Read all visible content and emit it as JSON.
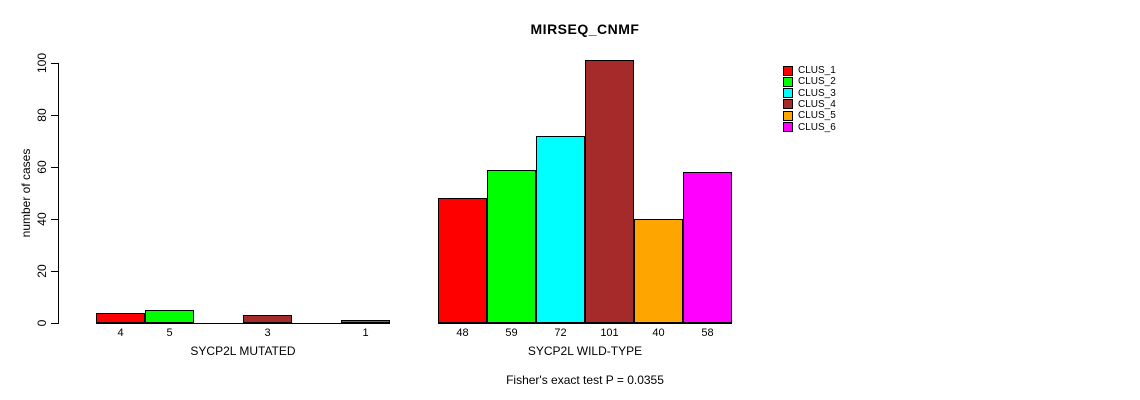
{
  "title": "MIRSEQ_CNMF",
  "footer_annotation": "Fisher's exact test P = 0.0355",
  "y_axis": {
    "label": "number of cases",
    "ticks": [
      0,
      20,
      40,
      60,
      80,
      100
    ]
  },
  "legend": {
    "position": "right",
    "entries": [
      {
        "label": "CLUS_1",
        "color": "#FF0000"
      },
      {
        "label": "CLUS_2",
        "color": "#00FF00"
      },
      {
        "label": "CLUS_3",
        "color": "#00FFFF"
      },
      {
        "label": "CLUS_4",
        "color": "#A52A2A"
      },
      {
        "label": "CLUS_5",
        "color": "#FFA500"
      },
      {
        "label": "CLUS_6",
        "color": "#FF00FF"
      }
    ]
  },
  "chart_data": {
    "type": "bar",
    "title": "MIRSEQ_CNMF",
    "xlabel": "",
    "ylabel": "number of cases",
    "ylim": [
      0,
      100
    ],
    "yticks": [
      0,
      20,
      40,
      60,
      80,
      100
    ],
    "grid": false,
    "legend_position": "right",
    "categories": [
      "CLUS_1",
      "CLUS_2",
      "CLUS_3",
      "CLUS_4",
      "CLUS_5",
      "CLUS_6"
    ],
    "colors": [
      "#FF0000",
      "#00FF00",
      "#00FFFF",
      "#A52A2A",
      "#FFA500",
      "#FF00FF"
    ],
    "bar_border_color": "#000000",
    "groups": [
      {
        "label": "SYCP2L MUTATED",
        "values": [
          4,
          5,
          0,
          3,
          0,
          1
        ]
      },
      {
        "label": "SYCP2L WILD-TYPE",
        "values": [
          48,
          59,
          72,
          101,
          40,
          58
        ]
      }
    ],
    "value_labels_shown": true,
    "zero_bars_unlabeled": true,
    "annotation": "Fisher's exact test P = 0.0355"
  }
}
